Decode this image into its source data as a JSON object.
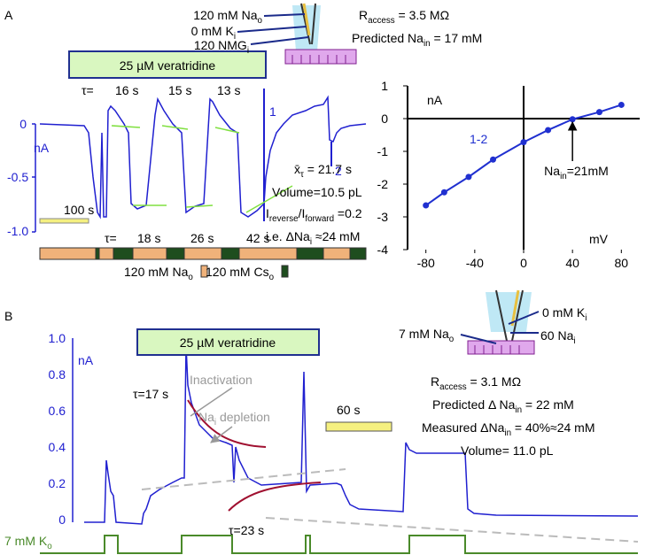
{
  "panel_a": {
    "label": "A",
    "pipette": [
      [
        {
          "text": "120 mM Na"
        },
        {
          "sub": "o"
        }
      ],
      [
        {
          "text": "0 mM K"
        },
        {
          "sub": "i"
        }
      ],
      [
        {
          "text": "120 NMG"
        },
        {
          "sub": "i"
        }
      ]
    ],
    "r_access": [
      {
        "text": "R"
      },
      {
        "sub": "access"
      },
      {
        "text": " = 3.5 MΩ"
      }
    ],
    "predicted": [
      {
        "text": "Predicted Na"
      },
      {
        "sub": "in"
      },
      {
        "text": " = 17 mM"
      }
    ],
    "drug": "25 µM veratridine",
    "tau_top": [
      "τ=",
      "16 s",
      "15 s",
      "13 s"
    ],
    "tau_bottom": [
      "τ=",
      "18 s",
      "26 s",
      "42 s"
    ],
    "trace_axis": [
      "0",
      "nA",
      "-0.5",
      "-1.0"
    ],
    "markers": [
      "1",
      "2"
    ],
    "scale_bar": "100 s",
    "stats": [
      [
        {
          "text": "x̄"
        },
        {
          "sub": "τ"
        },
        {
          "text": " = 21.7 s"
        }
      ],
      [
        {
          "text": "Volume=10.5 pL"
        }
      ],
      [
        {
          "text": "I"
        },
        {
          "sub": "reverse"
        },
        {
          "text": "/I"
        },
        {
          "sub": "forward"
        },
        {
          "text": " =0.2"
        }
      ],
      [
        {
          "text": "i.e. ΔNa"
        },
        {
          "sub": "i"
        },
        {
          "text": " ≈24 mM"
        }
      ]
    ],
    "solutions": [
      [
        {
          "text": "120 mM Na"
        },
        {
          "sub": "o"
        }
      ],
      [
        {
          "text": "120 mM Cs"
        },
        {
          "sub": "o"
        }
      ]
    ]
  },
  "chart_data": {
    "type": "scatter",
    "y_label": "nA",
    "x_label": "mV",
    "x": [
      -80,
      -65,
      -45,
      -25,
      0,
      20,
      40,
      62,
      80
    ],
    "series": [
      {
        "name": "1-2",
        "color": "#2030d0",
        "values": [
          -2.65,
          -2.25,
          -1.78,
          -1.25,
          -0.72,
          -0.35,
          -0.02,
          0.2,
          0.42
        ]
      }
    ],
    "xlim": [
      -95,
      95
    ],
    "ylim": [
      -4,
      1
    ],
    "xticks": [
      -80,
      -40,
      0,
      40,
      80
    ],
    "yticks": [
      1,
      0,
      -1,
      -2,
      -3,
      -4
    ],
    "annotation": [
      {
        "text": "Na"
      },
      {
        "sub": "in"
      },
      {
        "text": "=21mM"
      }
    ]
  },
  "panel_b": {
    "label": "B",
    "trace_axis": [
      "1.0",
      "0.8",
      "0.6",
      "0.4",
      "0.2",
      "0",
      "nA"
    ],
    "drug": "25 µM veratridine",
    "inactivation": "Inactivation",
    "depletion": [
      {
        "text": "Na"
      },
      {
        "sub": "i"
      },
      {
        "text": " depletion"
      }
    ],
    "tau_1": "τ=17 s",
    "tau_2": "τ=23 s",
    "scale_bar": "60 s",
    "bath": [
      {
        "text": "7 mM Na"
      },
      {
        "sub": "o"
      }
    ],
    "pipette": [
      [
        {
          "text": "0 mM K"
        },
        {
          "sub": "i"
        }
      ],
      [
        {
          "text": "60 Na"
        },
        {
          "sub": "i"
        }
      ]
    ],
    "r_access": [
      {
        "text": "R"
      },
      {
        "sub": "access"
      },
      {
        "text": " = 3.1 MΩ"
      }
    ],
    "predicted": [
      {
        "text": "Predicted Δ Na"
      },
      {
        "sub": "in"
      },
      {
        "text": " = 22 mM"
      }
    ],
    "measured": [
      {
        "text": "Measured ΔNa"
      },
      {
        "sub": "in"
      },
      {
        "text": " = 40%≈24 mM"
      }
    ],
    "volume": "Volume= 11.0 pL",
    "potassium": [
      {
        "text": "7 mM K"
      },
      {
        "sub": "o"
      }
    ]
  }
}
